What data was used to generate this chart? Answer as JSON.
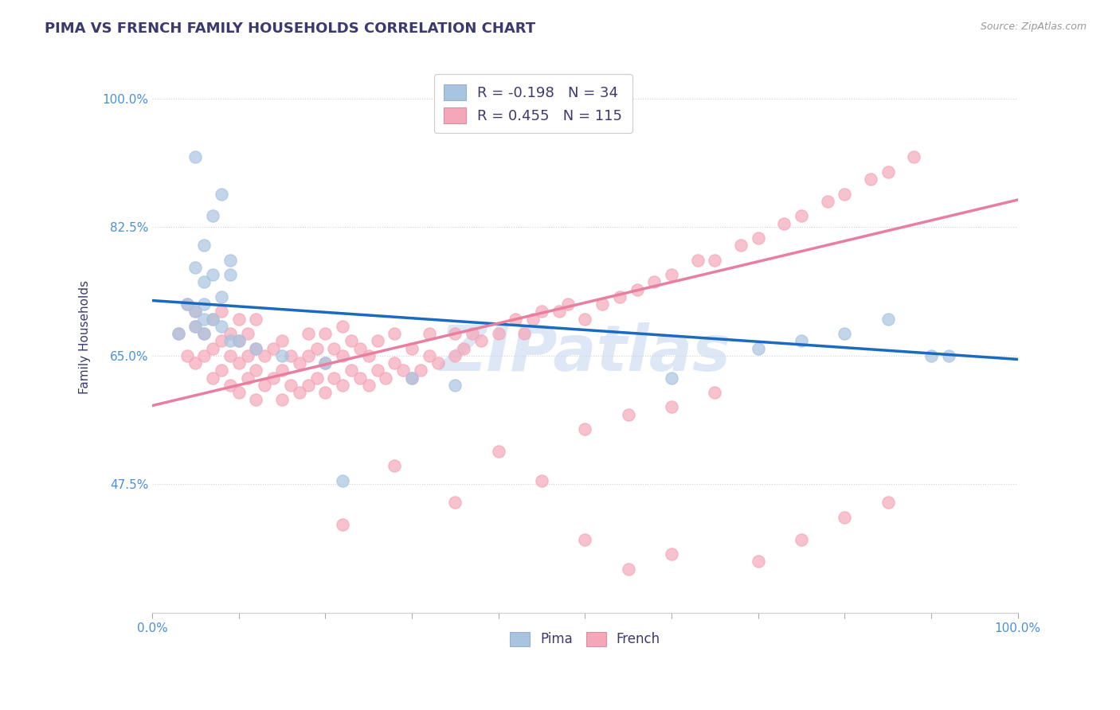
{
  "title": "PIMA VS FRENCH FAMILY HOUSEHOLDS CORRELATION CHART",
  "source_text": "Source: ZipAtlas.com",
  "ylabel": "Family Households",
  "xlim": [
    0.0,
    1.0
  ],
  "ylim": [
    0.3,
    1.05
  ],
  "yticks": [
    0.475,
    0.65,
    0.825,
    1.0
  ],
  "ytick_labels": [
    "47.5%",
    "65.0%",
    "82.5%",
    "100.0%"
  ],
  "legend_pima_R": "-0.198",
  "legend_pima_N": "34",
  "legend_french_R": "0.455",
  "legend_french_N": "115",
  "pima_color": "#a8c4e0",
  "french_color": "#f4a7b9",
  "pima_line_color": "#1a6abf",
  "french_line_color": "#e87fa0",
  "title_color": "#3a3a6e",
  "axis_color": "#4a90d9",
  "watermark_text": "ZIPatlas",
  "watermark_color": "#c8d8f0",
  "background_color": "#ffffff",
  "grid_color": "#cccccc",
  "pima_scatter_x": [
    0.05,
    0.08,
    0.07,
    0.06,
    0.09,
    0.05,
    0.07,
    0.09,
    0.06,
    0.08,
    0.04,
    0.06,
    0.05,
    0.07,
    0.06,
    0.05,
    0.08,
    0.03,
    0.06,
    0.09,
    0.1,
    0.12,
    0.15,
    0.2,
    0.3,
    0.35,
    0.22,
    0.6,
    0.7,
    0.75,
    0.8,
    0.85,
    0.9,
    0.92
  ],
  "pima_scatter_y": [
    0.92,
    0.87,
    0.84,
    0.8,
    0.78,
    0.77,
    0.76,
    0.76,
    0.75,
    0.73,
    0.72,
    0.72,
    0.71,
    0.7,
    0.7,
    0.69,
    0.69,
    0.68,
    0.68,
    0.67,
    0.67,
    0.66,
    0.65,
    0.64,
    0.62,
    0.61,
    0.48,
    0.62,
    0.66,
    0.67,
    0.68,
    0.7,
    0.65,
    0.65
  ],
  "french_scatter_x": [
    0.03,
    0.04,
    0.04,
    0.05,
    0.05,
    0.05,
    0.06,
    0.06,
    0.07,
    0.07,
    0.07,
    0.08,
    0.08,
    0.08,
    0.09,
    0.09,
    0.09,
    0.1,
    0.1,
    0.1,
    0.1,
    0.11,
    0.11,
    0.11,
    0.12,
    0.12,
    0.12,
    0.12,
    0.13,
    0.13,
    0.14,
    0.14,
    0.15,
    0.15,
    0.15,
    0.16,
    0.16,
    0.17,
    0.17,
    0.18,
    0.18,
    0.18,
    0.19,
    0.19,
    0.2,
    0.2,
    0.2,
    0.21,
    0.21,
    0.22,
    0.22,
    0.22,
    0.23,
    0.23,
    0.24,
    0.24,
    0.25,
    0.25,
    0.26,
    0.26,
    0.27,
    0.28,
    0.28,
    0.29,
    0.3,
    0.3,
    0.31,
    0.32,
    0.32,
    0.33,
    0.35,
    0.35,
    0.36,
    0.37,
    0.38,
    0.4,
    0.42,
    0.43,
    0.44,
    0.45,
    0.47,
    0.48,
    0.5,
    0.52,
    0.54,
    0.56,
    0.58,
    0.6,
    0.63,
    0.65,
    0.68,
    0.7,
    0.73,
    0.75,
    0.78,
    0.8,
    0.83,
    0.85,
    0.88,
    0.35,
    0.4,
    0.45,
    0.22,
    0.28,
    0.5,
    0.55,
    0.6,
    0.65,
    0.55,
    0.6,
    0.7,
    0.5,
    0.75,
    0.8,
    0.85
  ],
  "french_scatter_y": [
    0.68,
    0.72,
    0.65,
    0.69,
    0.64,
    0.71,
    0.65,
    0.68,
    0.62,
    0.66,
    0.7,
    0.63,
    0.67,
    0.71,
    0.61,
    0.65,
    0.68,
    0.6,
    0.64,
    0.67,
    0.7,
    0.62,
    0.65,
    0.68,
    0.59,
    0.63,
    0.66,
    0.7,
    0.61,
    0.65,
    0.62,
    0.66,
    0.59,
    0.63,
    0.67,
    0.61,
    0.65,
    0.6,
    0.64,
    0.61,
    0.65,
    0.68,
    0.62,
    0.66,
    0.6,
    0.64,
    0.68,
    0.62,
    0.66,
    0.61,
    0.65,
    0.69,
    0.63,
    0.67,
    0.62,
    0.66,
    0.61,
    0.65,
    0.63,
    0.67,
    0.62,
    0.64,
    0.68,
    0.63,
    0.62,
    0.66,
    0.63,
    0.65,
    0.68,
    0.64,
    0.65,
    0.68,
    0.66,
    0.68,
    0.67,
    0.68,
    0.7,
    0.68,
    0.7,
    0.71,
    0.71,
    0.72,
    0.7,
    0.72,
    0.73,
    0.74,
    0.75,
    0.76,
    0.78,
    0.78,
    0.8,
    0.81,
    0.83,
    0.84,
    0.86,
    0.87,
    0.89,
    0.9,
    0.92,
    0.45,
    0.52,
    0.48,
    0.42,
    0.5,
    0.55,
    0.57,
    0.58,
    0.6,
    0.36,
    0.38,
    0.37,
    0.4,
    0.4,
    0.43,
    0.45
  ],
  "pima_trend_x": [
    0.0,
    1.0
  ],
  "pima_trend_y_start": 0.725,
  "pima_trend_y_end": 0.645,
  "french_trend_x": [
    0.0,
    1.0
  ],
  "french_trend_y_start": 0.582,
  "french_trend_y_end": 0.862
}
